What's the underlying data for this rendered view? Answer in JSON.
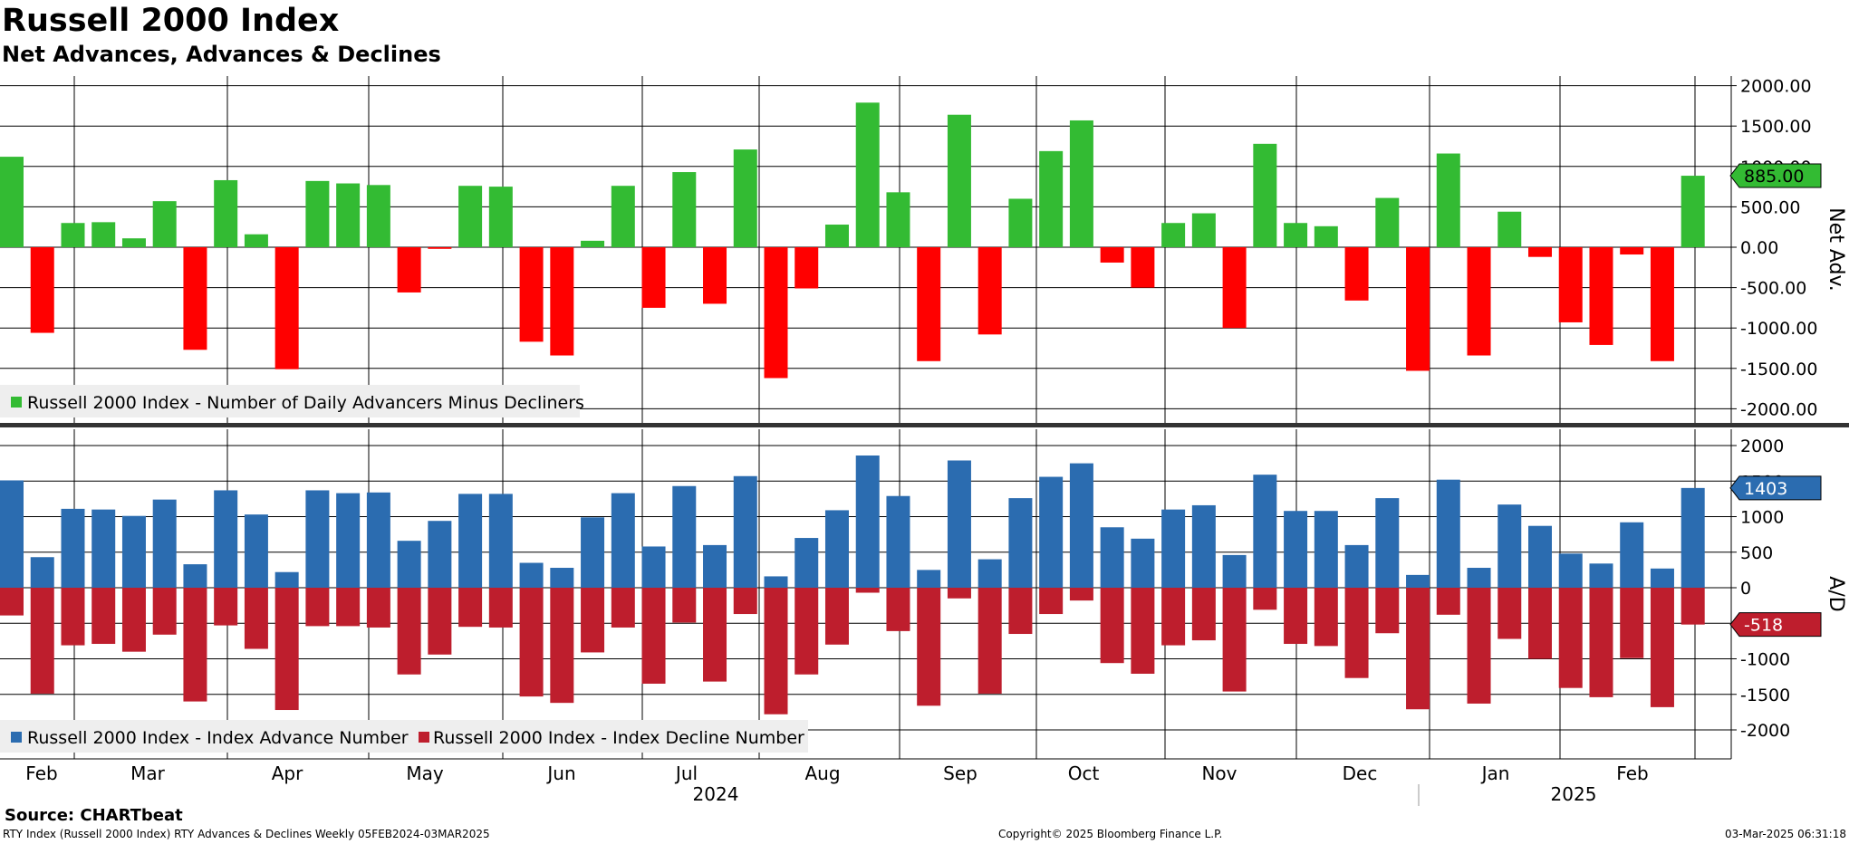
{
  "title": "Russell 2000 Index",
  "subtitle": "Net Advances, Advances & Declines",
  "source": "Source: CHARTbeat",
  "footer": {
    "left": "RTY Index (Russell 2000 Index) RTY Advances & Declines  Weekly 05FEB2024-03MAR2025",
    "center": "Copyright© 2025 Bloomberg Finance L.P.",
    "right": "03-Mar-2025 06:31:18"
  },
  "chart_data": [
    {
      "type": "bar",
      "ylabel": "Net Adv.",
      "ylim": [
        -2200,
        2000
      ],
      "yticks": [
        2000,
        1500,
        1000,
        500,
        0,
        -500,
        -1000,
        -1500,
        -2000
      ],
      "ytick_labels": [
        "2000.00",
        "1500.00",
        "1000.00",
        "500.00",
        "0.00",
        "-500.00",
        "-1000.00",
        "-1500.00",
        "-2000.00"
      ],
      "legend": [
        "Russell 2000 Index - Number of Daily Advancers Minus Decliners"
      ],
      "legend_position": "bottom-left",
      "colors": {
        "positive": "#33bb33",
        "negative": "#ff0000"
      },
      "last_value_label": "885.00",
      "series": [
        {
          "name": "Russell 2000 Index - Number of Daily Advancers Minus Decliners",
          "values": [
            1120,
            -1060,
            300,
            310,
            110,
            570,
            -1270,
            830,
            160,
            -1510,
            820,
            790,
            770,
            -560,
            -20,
            760,
            750,
            -1170,
            -1340,
            80,
            760,
            -750,
            930,
            -700,
            1210,
            -1620,
            -510,
            280,
            1790,
            680,
            -1410,
            1640,
            -1080,
            600,
            1190,
            1570,
            -190,
            -500,
            300,
            420,
            -1000,
            1280,
            300,
            260,
            -660,
            610,
            -1530,
            1160,
            -1340,
            440,
            -120,
            -930,
            -1210,
            -90,
            -1410,
            885
          ]
        }
      ],
      "grid": true
    },
    {
      "type": "bar",
      "ylabel": "A/D",
      "ylim": [
        -2380,
        2200
      ],
      "yticks": [
        2000,
        1500,
        1000,
        500,
        0,
        -500,
        -1000,
        -1500,
        -2000
      ],
      "ytick_labels": [
        "2000",
        "1500",
        "1000",
        "500",
        "0",
        "-500",
        "-1000",
        "-1500",
        "-2000"
      ],
      "legend": [
        "Russell 2000 Index - Index Advance Number",
        "Russell 2000 Index - Index Decline Number"
      ],
      "legend_position": "bottom-left",
      "last_value_labels": {
        "advance": "1403",
        "decline": "-518"
      },
      "series": [
        {
          "name": "Russell 2000 Index - Index Advance Number",
          "color": "#2b6cb0",
          "values": [
            1510,
            430,
            1110,
            1100,
            1010,
            1240,
            330,
            1370,
            1030,
            220,
            1370,
            1330,
            1340,
            660,
            940,
            1320,
            1320,
            350,
            280,
            990,
            1330,
            580,
            1430,
            600,
            1570,
            160,
            700,
            1090,
            1860,
            1290,
            250,
            1790,
            400,
            1260,
            1560,
            1750,
            850,
            690,
            1100,
            1160,
            460,
            1590,
            1080,
            1080,
            600,
            1260,
            180,
            1520,
            280,
            1170,
            870,
            480,
            340,
            920,
            270,
            1403
          ]
        },
        {
          "name": "Russell 2000 Index - Index Decline Number",
          "color": "#be1e2d",
          "values": [
            -390,
            -1490,
            -810,
            -790,
            -900,
            -660,
            -1600,
            -530,
            -860,
            -1720,
            -540,
            -540,
            -560,
            -1220,
            -940,
            -550,
            -560,
            -1530,
            -1620,
            -910,
            -560,
            -1350,
            -490,
            -1320,
            -370,
            -1780,
            -1220,
            -800,
            -70,
            -610,
            -1660,
            -150,
            -1490,
            -650,
            -370,
            -180,
            -1060,
            -1210,
            -810,
            -740,
            -1460,
            -310,
            -790,
            -820,
            -1270,
            -640,
            -1710,
            -380,
            -1630,
            -720,
            -1000,
            -1410,
            -1540,
            -990,
            -1680,
            -518
          ]
        }
      ],
      "grid": true
    }
  ],
  "x_axis": {
    "months": [
      "Feb",
      "Mar",
      "Apr",
      "May",
      "Jun",
      "Jul",
      "Aug",
      "Sep",
      "Oct",
      "Nov",
      "Dec",
      "Jan",
      "Feb"
    ],
    "years": [
      "2024",
      "2025"
    ]
  }
}
